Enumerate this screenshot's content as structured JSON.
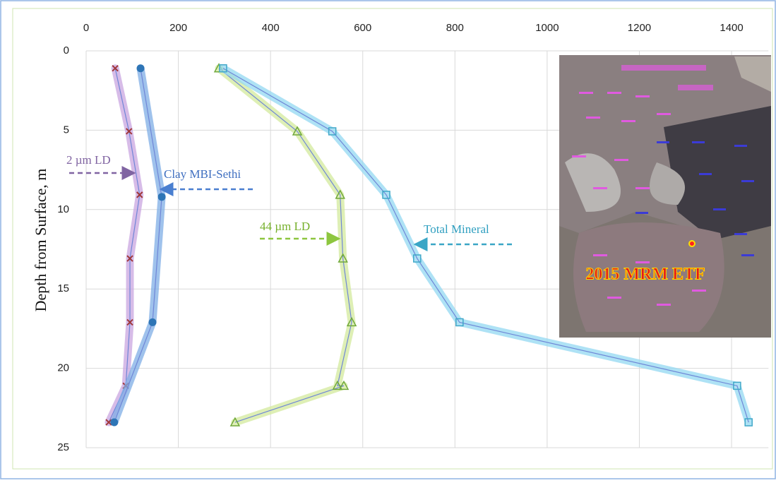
{
  "chart_data": {
    "type": "line",
    "y_label": "Depth from Surface, m",
    "xlim": [
      0,
      1480
    ],
    "xticks": [
      0,
      200,
      400,
      600,
      800,
      1000,
      1200,
      1400
    ],
    "ylim": [
      0,
      25
    ],
    "yticks": [
      0,
      5,
      10,
      15,
      20,
      25
    ],
    "y_inverted": true,
    "grid": true,
    "series": [
      {
        "name": "2 µm LD",
        "color": "#a0373a",
        "glow": "#c9a6e0",
        "marker": "x",
        "depths": [
          1.1,
          5.07,
          9.07,
          13.08,
          17.1,
          21.1,
          23.4
        ],
        "values": [
          63,
          93,
          116,
          95,
          95,
          86,
          49
        ]
      },
      {
        "name": "Clay MBI-Sethi",
        "color": "#2e75b6",
        "glow": "#7faee6",
        "marker": "circle",
        "depths": [
          1.1,
          9.2,
          17.1,
          23.4
        ],
        "values": [
          118,
          164,
          144,
          61
        ]
      },
      {
        "name": "44 µm LD",
        "color": "#70a83a",
        "glow": "#d3ea9c",
        "marker": "triangle",
        "depths": [
          1.1,
          5.07,
          9.07,
          13.08,
          17.1,
          21.1,
          21.1,
          23.4
        ],
        "values": [
          288,
          458,
          551,
          557,
          576,
          545,
          559,
          323
        ]
      },
      {
        "name": "Total Mineral",
        "color": "#3fa7c8",
        "glow": "#93d8f2",
        "marker": "square",
        "depths": [
          1.1,
          5.07,
          9.07,
          13.08,
          17.1,
          21.1,
          23.4
        ],
        "values": [
          297,
          534,
          651,
          718,
          810,
          1412,
          1437
        ]
      }
    ],
    "inset_label": "2015 MRM  ETF"
  }
}
